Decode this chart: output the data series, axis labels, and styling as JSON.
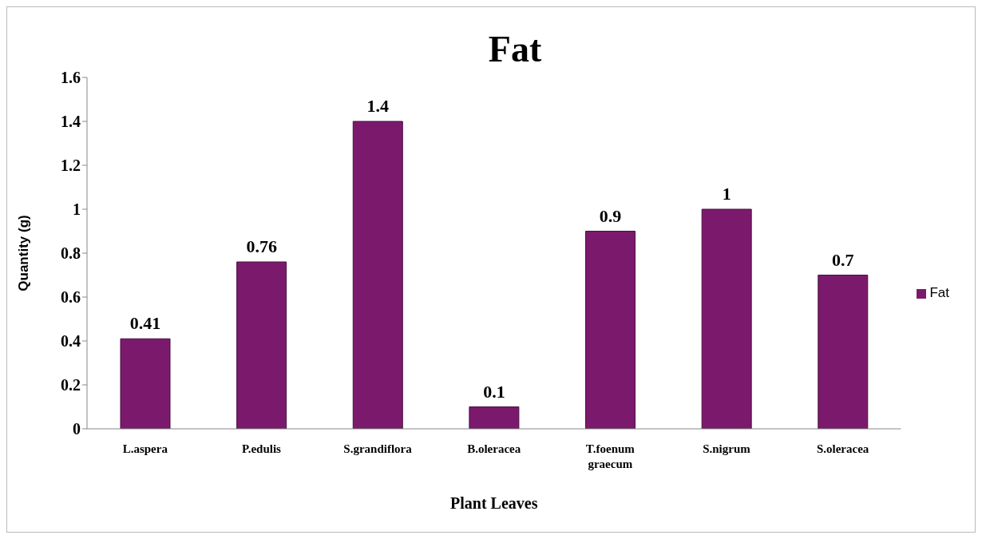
{
  "chart_data": {
    "type": "bar",
    "title": "Fat",
    "xlabel": "Plant Leaves",
    "ylabel": "Quantity (g)",
    "categories": [
      "L.aspera",
      "P.edulis",
      "S.grandiflora",
      "B.oleracea",
      "T.foenum graecum",
      "S.nigrum",
      "S.oleracea"
    ],
    "series": [
      {
        "name": "Fat",
        "color": "#7b1a6c",
        "values": [
          0.41,
          0.76,
          1.4,
          0.1,
          0.9,
          1,
          0.7
        ]
      }
    ],
    "ylim": [
      0,
      1.6
    ],
    "yticks": [
      0,
      0.2,
      0.4,
      0.6,
      0.8,
      1,
      1.2,
      1.4,
      1.6
    ],
    "grid": false,
    "legend": "right",
    "data_labels": true
  }
}
